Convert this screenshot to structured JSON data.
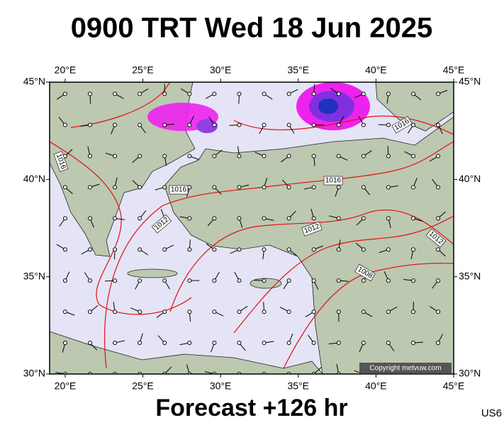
{
  "header": {
    "title": "0900 TRT Wed 18 Jun 2025"
  },
  "map": {
    "lon_ticks": [
      {
        "value": 20,
        "label": "20°E"
      },
      {
        "value": 25,
        "label": "25°E"
      },
      {
        "value": 30,
        "label": "30°E"
      },
      {
        "value": 35,
        "label": "35°E"
      },
      {
        "value": 40,
        "label": "40°E"
      },
      {
        "value": 45,
        "label": "45°E"
      }
    ],
    "lat_ticks": [
      {
        "value": 45,
        "label": "45°N"
      },
      {
        "value": 40,
        "label": "40°N"
      },
      {
        "value": 35,
        "label": "35°N"
      },
      {
        "value": 30,
        "label": "30°N"
      }
    ],
    "isobar_labels": [
      "1016",
      "1016",
      "1016",
      "1016",
      "1012",
      "1012",
      "1012",
      "1008"
    ],
    "copyright": "Copyright metvuw.com"
  },
  "footer": {
    "forecast": "Forecast +126 hr",
    "code": "US6"
  }
}
